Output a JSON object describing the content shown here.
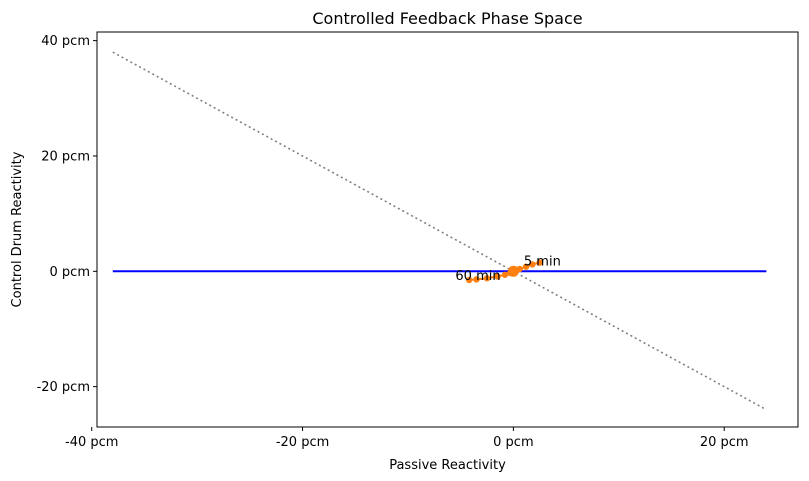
{
  "chart_data": {
    "type": "line",
    "title": "Controlled Feedback Phase Space",
    "xlabel": "Passive Reactivity",
    "ylabel": "Control Drum Reactivity",
    "xlim": [
      -39.5,
      27
    ],
    "ylim": [
      -27,
      41.5
    ],
    "xticks": [
      -40,
      -20,
      0,
      20
    ],
    "xtick_labels": [
      "-40 pcm",
      "-20 pcm",
      "0 pcm",
      "20 pcm"
    ],
    "yticks": [
      -20,
      0,
      20,
      40
    ],
    "ytick_labels": [
      "-20 pcm",
      "0 pcm",
      "20 pcm",
      "40 pcm"
    ],
    "grid": false,
    "series": [
      {
        "style": "solid",
        "color": "#0000ff",
        "x": [
          -38,
          24
        ],
        "y": [
          0,
          0
        ]
      },
      {
        "style": "dotted",
        "color": "#808080",
        "x": [
          -38,
          24
        ],
        "y": [
          38,
          -24
        ]
      },
      {
        "style": "line-markers",
        "color": "#ff7f0e",
        "x": [
          2.5,
          1.8,
          1.2,
          0.6,
          0.2,
          0,
          -0.3,
          -0.8,
          -1.5,
          -2.5,
          -3.5,
          -4.2
        ],
        "y": [
          1.5,
          1.2,
          0.8,
          0.4,
          0.1,
          0,
          -0.3,
          -0.6,
          -0.9,
          -1.2,
          -1.4,
          -1.5
        ]
      }
    ],
    "annotations": [
      {
        "text": "5 min",
        "x": 1.0,
        "y": 1.0
      },
      {
        "text": "60 min",
        "x": -5.5,
        "y": -1.5
      }
    ]
  }
}
